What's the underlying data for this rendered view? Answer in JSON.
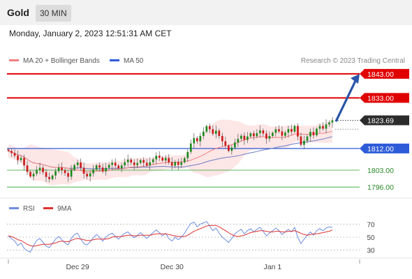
{
  "header": {
    "title": "Gold",
    "timeframe": "30 MIN",
    "datetime": "Monday, January 2, 2023 12:51:31 AM CET"
  },
  "colors": {
    "resistance": "#e00000",
    "support": "#2e5bd8",
    "minor_support": "#2aa02a",
    "candle_up": "#1d8a1d",
    "candle_down": "#cc1a1a",
    "bollinger_fill": "#fde0e0",
    "ma20": "#f08080",
    "ma50": "#6b7fc4",
    "arrow": "#2a55a8",
    "rsi": "#6d8ee0",
    "rsi_ma": "#e03030",
    "current_price": "#2b2b2b"
  },
  "chart_data": [
    {
      "type": "candlestick",
      "legend": [
        {
          "name": "MA 20 + Bollinger Bands",
          "color": "#f08080"
        },
        {
          "name": "MA 50",
          "color": "#2e5bd8"
        }
      ],
      "credit": "Research © 2023 Trading Central",
      "ylim": [
        1792,
        1847
      ],
      "x_ticks": [
        "Dec 29",
        "Dec 30",
        "Jan 1"
      ],
      "x_tick_positions": [
        22,
        52,
        84
      ],
      "levels": [
        {
          "value": 1843.0,
          "label": "1843.00",
          "kind": "resistance"
        },
        {
          "value": 1833.0,
          "label": "1833.00",
          "kind": "resistance"
        },
        {
          "value": 1812.0,
          "label": "1812.00",
          "kind": "support"
        },
        {
          "value": 1803.0,
          "label": "1803.00",
          "kind": "minor"
        },
        {
          "value": 1796.0,
          "label": "1796.00",
          "kind": "minor"
        }
      ],
      "current_price": {
        "value": 1823.69,
        "label": "1823.69"
      },
      "close": [
        1811.0,
        1810.1,
        1809.0,
        1807.2,
        1808.1,
        1805.0,
        1802.3,
        1800.4,
        1801.5,
        1803.1,
        1804.0,
        1802.2,
        1800.2,
        1799.3,
        1800.8,
        1802.6,
        1804.1,
        1803.0,
        1801.8,
        1800.3,
        1803.2,
        1805.1,
        1806.2,
        1804.0,
        1801.5,
        1800.4,
        1801.7,
        1803.3,
        1805.0,
        1804.1,
        1802.6,
        1804.0,
        1805.2,
        1806.1,
        1804.9,
        1803.8,
        1805.0,
        1806.3,
        1807.4,
        1806.2,
        1805.1,
        1806.0,
        1807.2,
        1806.1,
        1805.0,
        1806.3,
        1807.5,
        1809.0,
        1808.2,
        1807.0,
        1808.1,
        1806.2,
        1804.9,
        1806.4,
        1805.2,
        1806.3,
        1808.0,
        1810.6,
        1814.1,
        1816.3,
        1815.0,
        1817.2,
        1819.0,
        1821.3,
        1820.0,
        1818.1,
        1819.4,
        1817.2,
        1815.0,
        1813.2,
        1811.0,
        1812.4,
        1814.5,
        1816.0,
        1817.3,
        1815.6,
        1817.0,
        1818.3,
        1817.1,
        1818.4,
        1819.5,
        1818.2,
        1816.1,
        1817.2,
        1818.5,
        1820.0,
        1819.1,
        1817.3,
        1818.6,
        1820.1,
        1819.0,
        1821.4,
        1817.0,
        1813.5,
        1815.2,
        1817.0,
        1818.9,
        1817.5,
        1820.2,
        1821.3,
        1820.2,
        1822.0,
        1822.8,
        1823.7
      ],
      "rsi": {
        "legend": [
          {
            "name": "RSI",
            "color": "#6d8ee0"
          },
          {
            "name": "9MA",
            "color": "#e03030"
          }
        ],
        "ylim": [
          20,
          80
        ],
        "levels": [
          70,
          50,
          30
        ],
        "level_labels": [
          "70",
          "50",
          "30"
        ],
        "values": [
          52,
          48,
          44,
          37,
          41,
          33,
          29,
          27,
          37,
          45,
          48,
          42,
          36,
          34,
          40,
          47,
          51,
          46,
          41,
          38,
          48,
          54,
          56,
          47,
          40,
          38,
          43,
          49,
          54,
          50,
          44,
          50,
          54,
          56,
          51,
          47,
          52,
          56,
          58,
          53,
          49,
          53,
          57,
          52,
          48,
          53,
          57,
          61,
          57,
          52,
          56,
          48,
          44,
          50,
          46,
          50,
          56,
          64,
          71,
          73,
          66,
          70,
          72,
          74,
          67,
          60,
          64,
          56,
          50,
          46,
          42,
          48,
          55,
          59,
          62,
          55,
          60,
          63,
          58,
          62,
          65,
          59,
          52,
          56,
          60,
          64,
          60,
          54,
          58,
          62,
          58,
          65,
          50,
          40,
          47,
          53,
          58,
          53,
          60,
          63,
          60,
          64,
          66,
          65
        ],
        "ma_values": [
          52,
          51,
          49,
          46,
          45,
          42,
          39,
          37,
          36,
          37,
          38,
          39,
          39,
          39,
          40,
          41,
          43,
          44,
          43,
          43,
          45,
          47,
          48,
          47,
          46,
          45,
          45,
          46,
          47,
          47,
          47,
          47,
          48,
          50,
          51,
          51,
          51,
          52,
          53,
          53,
          52,
          52,
          53,
          53,
          53,
          53,
          54,
          55,
          55,
          55,
          55,
          54,
          53,
          52,
          51,
          51,
          51,
          53,
          56,
          59,
          61,
          63,
          65,
          67,
          68,
          68,
          68,
          66,
          63,
          60,
          57,
          54,
          52,
          51,
          52,
          53,
          55,
          57,
          58,
          59,
          60,
          60,
          59,
          58,
          58,
          59,
          59,
          58,
          58,
          59,
          59,
          60,
          58,
          56,
          54,
          53,
          54,
          55,
          55,
          56,
          57,
          58,
          59,
          61
        ]
      }
    }
  ]
}
